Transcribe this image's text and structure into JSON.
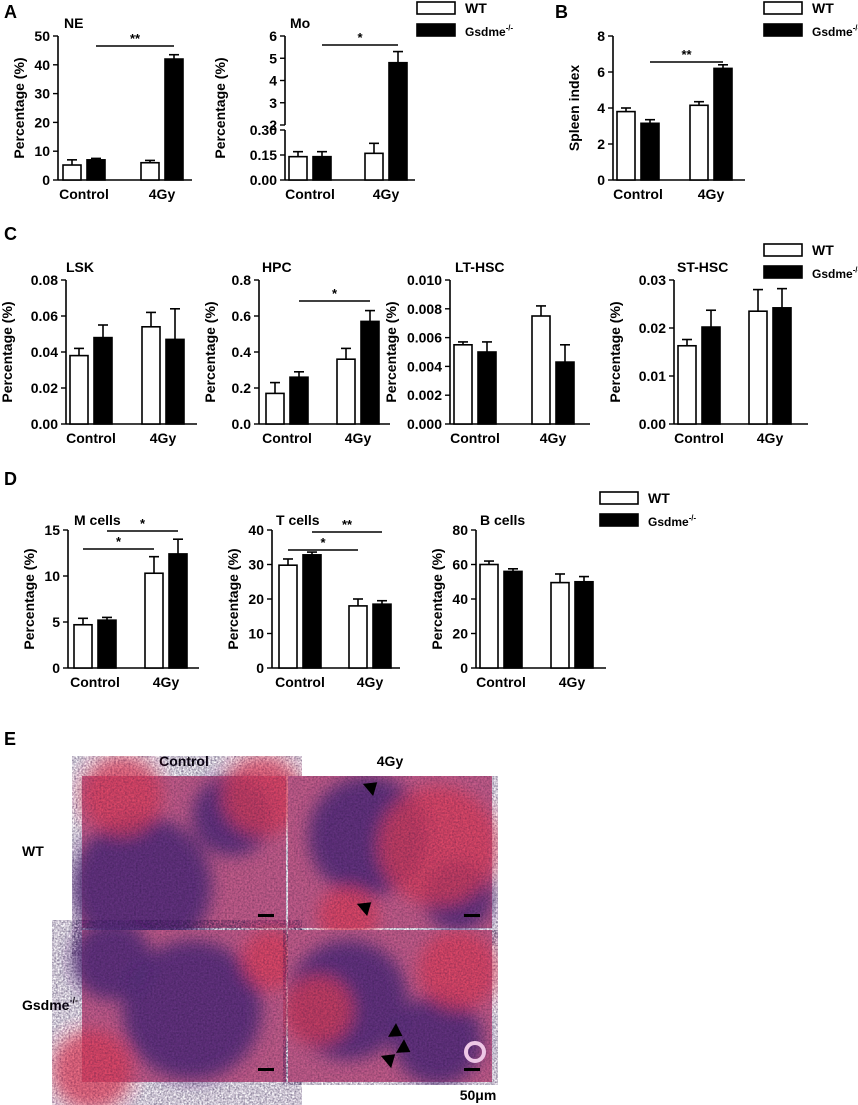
{
  "legend_labels": {
    "wt": "WT",
    "ko_base": "Gsdme",
    "ko_sup": "-/-"
  },
  "panel_letters": [
    "A",
    "B",
    "C",
    "D",
    "E"
  ],
  "histology": {
    "columns": [
      "Control",
      "4Gy"
    ],
    "rows": [
      {
        "base": "WT",
        "sup": ""
      },
      {
        "base": "Gsdme",
        "sup": "-/-"
      }
    ],
    "scale_bar_label": "50μm",
    "colors": {
      "bg": "#c55f8c",
      "dark": "#59327e",
      "red": "#e4425c",
      "light": "#eec8e6"
    }
  },
  "chart_data": [
    {
      "id": "NE",
      "type": "bar",
      "title": "NE",
      "ylabel": "Percentage (%)",
      "xlabel": "",
      "categories": [
        "Control",
        "4Gy"
      ],
      "series": [
        {
          "name": "WT",
          "values": [
            5.2,
            6.0
          ],
          "errors": [
            1.8,
            0.8
          ]
        },
        {
          "name": "Gsdme-/-",
          "values": [
            7.0,
            42.0
          ],
          "errors": [
            0.5,
            1.5
          ]
        }
      ],
      "ylim": [
        0,
        50
      ],
      "yticks": [
        "0",
        "10",
        "20",
        "30",
        "40",
        "50"
      ],
      "significance": [
        {
          "label": "**"
        }
      ]
    },
    {
      "id": "Mo",
      "type": "bar",
      "title": "Mo",
      "ylabel": "Percentage (%)",
      "xlabel": "",
      "broken_axis": true,
      "categories": [
        "Control",
        "4Gy"
      ],
      "series": [
        {
          "name": "WT",
          "values": [
            0.14,
            0.16
          ],
          "errors": [
            0.03,
            0.06
          ]
        },
        {
          "name": "Gsdme-/-",
          "values": [
            0.14,
            4.8
          ],
          "errors": [
            0.03,
            0.5
          ]
        }
      ],
      "yticks": [
        "0.00",
        "0.15",
        "0.30",
        "2",
        "3",
        "4",
        "5",
        "6"
      ],
      "significance": [
        {
          "label": "*"
        }
      ]
    },
    {
      "id": "Spleen",
      "type": "bar",
      "title": "",
      "ylabel": "Spleen index",
      "xlabel": "",
      "categories": [
        "Control",
        "4Gy"
      ],
      "series": [
        {
          "name": "WT",
          "values": [
            3.8,
            4.15
          ],
          "errors": [
            0.2,
            0.2
          ]
        },
        {
          "name": "Gsdme-/-",
          "values": [
            3.15,
            6.2
          ],
          "errors": [
            0.2,
            0.2
          ]
        }
      ],
      "ylim": [
        0,
        8
      ],
      "yticks": [
        "0",
        "2",
        "4",
        "6",
        "8"
      ],
      "significance": [
        {
          "label": "**"
        }
      ]
    },
    {
      "id": "LSK",
      "type": "bar",
      "title": "LSK",
      "ylabel": "Percentage (%)",
      "xlabel": "",
      "categories": [
        "Control",
        "4Gy"
      ],
      "series": [
        {
          "name": "WT",
          "values": [
            0.038,
            0.054
          ],
          "errors": [
            0.004,
            0.008
          ]
        },
        {
          "name": "Gsdme-/-",
          "values": [
            0.048,
            0.047
          ],
          "errors": [
            0.007,
            0.017
          ]
        }
      ],
      "ylim": [
        0,
        0.08
      ],
      "yticks": [
        "0.00",
        "0.02",
        "0.04",
        "0.06",
        "0.08"
      ],
      "significance": []
    },
    {
      "id": "HPC",
      "type": "bar",
      "title": "HPC",
      "ylabel": "Percentage (%)",
      "xlabel": "",
      "categories": [
        "Control",
        "4Gy"
      ],
      "series": [
        {
          "name": "WT",
          "values": [
            0.17,
            0.36
          ],
          "errors": [
            0.06,
            0.06
          ]
        },
        {
          "name": "Gsdme-/-",
          "values": [
            0.26,
            0.57
          ],
          "errors": [
            0.03,
            0.06
          ]
        }
      ],
      "ylim": [
        0,
        0.8
      ],
      "yticks": [
        "0.0",
        "0.2",
        "0.4",
        "0.6",
        "0.8"
      ],
      "significance": [
        {
          "label": "*"
        }
      ]
    },
    {
      "id": "LTHSC",
      "type": "bar",
      "title": "LT-HSC",
      "ylabel": "Percentage (%)",
      "xlabel": "",
      "categories": [
        "Control",
        "4Gy"
      ],
      "series": [
        {
          "name": "WT",
          "values": [
            0.0055,
            0.0075
          ],
          "errors": [
            0.0002,
            0.0007
          ]
        },
        {
          "name": "Gsdme-/-",
          "values": [
            0.005,
            0.0043
          ],
          "errors": [
            0.0007,
            0.0012
          ]
        }
      ],
      "ylim": [
        0,
        0.01
      ],
      "yticks": [
        "0.000",
        "0.002",
        "0.004",
        "0.006",
        "0.008",
        "0.010"
      ],
      "significance": []
    },
    {
      "id": "STHSC",
      "type": "bar",
      "title": "ST-HSC",
      "ylabel": "Percentage (%)",
      "xlabel": "",
      "categories": [
        "Control",
        "4Gy"
      ],
      "series": [
        {
          "name": "WT",
          "values": [
            0.0163,
            0.0235
          ],
          "errors": [
            0.0013,
            0.0045
          ]
        },
        {
          "name": "Gsdme-/-",
          "values": [
            0.0202,
            0.0242
          ],
          "errors": [
            0.0035,
            0.004
          ]
        }
      ],
      "ylim": [
        0,
        0.03
      ],
      "yticks": [
        "0.00",
        "0.01",
        "0.02",
        "0.03"
      ],
      "significance": []
    },
    {
      "id": "M",
      "type": "bar",
      "title": "M cells",
      "ylabel": "Percentage (%)",
      "xlabel": "",
      "categories": [
        "Control",
        "4Gy"
      ],
      "series": [
        {
          "name": "WT",
          "values": [
            4.7,
            10.3
          ],
          "errors": [
            0.7,
            1.8
          ]
        },
        {
          "name": "Gsdme-/-",
          "values": [
            5.2,
            12.4
          ],
          "errors": [
            0.3,
            1.6
          ]
        }
      ],
      "ylim": [
        0,
        15
      ],
      "yticks": [
        "0",
        "5",
        "10",
        "15"
      ],
      "significance": [
        {
          "label": "*"
        },
        {
          "label": "*"
        }
      ]
    },
    {
      "id": "T",
      "type": "bar",
      "title": "T cells",
      "ylabel": "Percentage (%)",
      "xlabel": "",
      "categories": [
        "Control",
        "4Gy"
      ],
      "series": [
        {
          "name": "WT",
          "values": [
            29.8,
            18.0
          ],
          "errors": [
            1.8,
            2.0
          ]
        },
        {
          "name": "Gsdme-/-",
          "values": [
            32.8,
            18.5
          ],
          "errors": [
            0.8,
            1.0
          ]
        }
      ],
      "ylim": [
        0,
        40
      ],
      "yticks": [
        "0",
        "10",
        "20",
        "30",
        "40"
      ],
      "significance": [
        {
          "label": "*"
        },
        {
          "label": "**"
        }
      ]
    },
    {
      "id": "B",
      "type": "bar",
      "title": "B cells",
      "ylabel": "Percentage (%)",
      "xlabel": "",
      "categories": [
        "Control",
        "4Gy"
      ],
      "series": [
        {
          "name": "WT",
          "values": [
            60.0,
            49.5
          ],
          "errors": [
            2.0,
            5.0
          ]
        },
        {
          "name": "Gsdme-/-",
          "values": [
            56.0,
            50.0
          ],
          "errors": [
            1.5,
            3.0
          ]
        }
      ],
      "ylim": [
        0,
        80
      ],
      "yticks": [
        "0",
        "20",
        "40",
        "60",
        "80"
      ],
      "significance": []
    }
  ]
}
